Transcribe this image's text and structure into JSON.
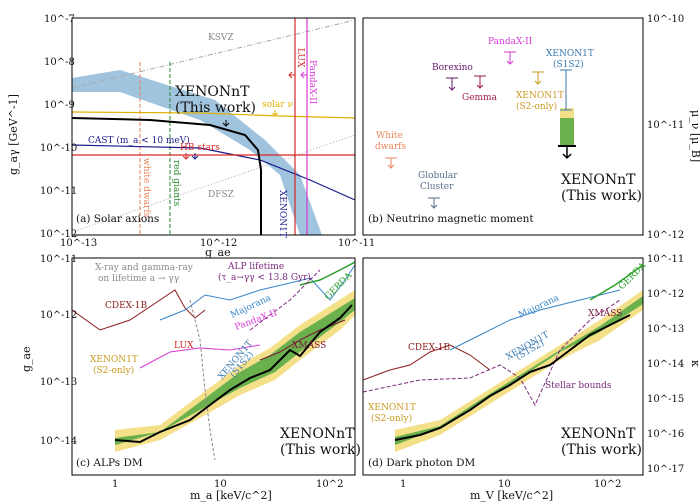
{
  "colors": {
    "xenon_black": "#000000",
    "band_green": "#6ab04c",
    "band_yellow": "#f5e08a",
    "xenon1t_blue": "#8fb8d8",
    "lux_red": "#d62728",
    "pandax_magenta": "#d63ad6",
    "solar_nu_gold": "#e0b000",
    "cast_navy": "#1b1b8a",
    "hb_red": "#d62728",
    "wd_orange": "#e8845a",
    "rg_green": "#2a8a2a",
    "borexino_purple": "#6a1b6a",
    "gemma_crimson": "#a01a4a",
    "xenon1t_s1s2": "#3a7ab0",
    "s2only_gold": "#c99a20",
    "gc_slate": "#5a6e8a",
    "cdex_darkred": "#8b1a1a",
    "majorana_blue": "#3a86c8",
    "gerda_green": "#2aa02a",
    "xmass_maroon": "#7a1a3a",
    "alp_purple": "#7a2a7a",
    "xray_gray": "#888888"
  },
  "chart_data": [
    {
      "panel": "a",
      "type": "line",
      "caption": "(a) Solar axions",
      "xlabel": "g_ae",
      "ylabel": "g_aγ [GeV^-1]",
      "xscale": "log",
      "yscale": "log",
      "xlim": [
        1e-13,
        1e-11
      ],
      "ylim": [
        1e-12,
        1e-07
      ],
      "x_ticks": [
        "10^-13",
        "10^-12",
        "10^-11"
      ],
      "y_ticks": [
        "10^-12",
        "10^-11",
        "10^-10",
        "10^-9",
        "10^-8",
        "10^-7"
      ],
      "annotations": [
        "KSVZ",
        "DFSZ",
        "PandaX-II",
        "LUX",
        "solar ν",
        "CAST (m_a < 10 meV)",
        "HB stars",
        "white dwarfs",
        "red giants",
        "XENON1T"
      ],
      "headline": [
        "XENONnT",
        "(This work)"
      ],
      "series": [
        {
          "name": "XENONnT",
          "x": [
            1e-13,
            2e-13,
            5e-13,
            1e-12,
            1.5e-12,
            1.9e-12,
            2e-12,
            2e-12
          ],
          "y": [
            6e-10,
            5e-10,
            4e-10,
            2.5e-10,
            1.5e-10,
            8e-11,
            2e-11,
            1e-12
          ]
        },
        {
          "name": "CAST (m_a < 10 meV)",
          "x": [
            1e-13,
            1e-12,
            3e-12,
            1e-11
          ],
          "y": [
            1.1e-10,
            1e-10,
            5e-11,
            1.2e-11
          ]
        },
        {
          "name": "solar ν",
          "x": [
            1e-13,
            1e-12,
            4e-12,
            1e-11
          ],
          "y": [
            5e-10,
            4.5e-10,
            4.2e-10,
            3.5e-10
          ]
        },
        {
          "name": "HB stars",
          "x": [
            1e-13,
            1e-11
          ],
          "y": [
            6.6e-11,
            6.6e-11
          ]
        },
        {
          "name": "LUX",
          "x": [
            3.5e-12,
            3.5e-12
          ],
          "y": [
            1e-12,
            1e-07
          ]
        },
        {
          "name": "PandaX-II",
          "x": [
            4.4e-12,
            4.4e-12
          ],
          "y": [
            1e-12,
            1e-07
          ]
        },
        {
          "name": "white dwarfs",
          "x": [
            2.8e-13,
            2.8e-13
          ],
          "y": [
            1e-12,
            1e-08
          ]
        },
        {
          "name": "red giants",
          "x": [
            4.3e-13,
            4.3e-13
          ],
          "y": [
            1e-12,
            1e-08
          ]
        },
        {
          "name": "KSVZ",
          "x": [
            1e-13,
            1e-11
          ],
          "y": [
            2e-09,
            1e-07
          ]
        },
        {
          "name": "DFSZ",
          "x": [
            1e-13,
            1e-11
          ],
          "y": [
            2e-12,
            1.5e-10
          ]
        }
      ],
      "xenon1t_band": {
        "x": [
          1e-13,
          1e-12,
          2.5e-12,
          3.3e-12
        ],
        "y_low": [
          3e-09,
          6e-10,
          1.5e-10,
          1e-12
        ],
        "y_high": [
          6e-09,
          1.5e-09,
          5e-10,
          1e-12
        ]
      }
    },
    {
      "panel": "b",
      "type": "scatter",
      "caption": "(b) Neutrino magnetic moment",
      "ylabel": "μ_ν [μ_B]",
      "yscale": "log",
      "ylim": [
        1e-12,
        1e-10
      ],
      "y_ticks": [
        "10^-12",
        "10^-11",
        "10^-10"
      ],
      "headline": [
        "XENONnT",
        "(This work)"
      ],
      "limits": [
        {
          "name": "White dwarfs",
          "value": 2.8e-12
        },
        {
          "name": "Globular Cluster",
          "value": 1.3e-12
        },
        {
          "name": "Borexino",
          "value": 2.8e-11
        },
        {
          "name": "Gemma",
          "value": 2.9e-11
        },
        {
          "name": "PandaX-II",
          "value": 4.9e-11
        },
        {
          "name": "XENON1T (S2-only)",
          "value": 3.2e-11
        },
        {
          "name": "XENON1T (S1S2)",
          "value_range": [
            1.4e-11,
            3.4e-11
          ]
        },
        {
          "name": "XENONnT",
          "value": 6.4e-12,
          "band_range": [
            6.4e-12,
            1.6e-11
          ]
        }
      ]
    },
    {
      "panel": "c",
      "type": "line",
      "caption": "(c) ALPs DM",
      "xlabel": "m_a [keV/c^2]",
      "ylabel": "g_ae",
      "xscale": "log",
      "yscale": "log",
      "xlim": [
        0.6,
        200
      ],
      "ylim": [
        5e-15,
        1e-11
      ],
      "x_ticks": [
        "1",
        "10",
        "10^2"
      ],
      "y_ticks": [
        "10^-14",
        "10^-13",
        "10^-12",
        "10^-11"
      ],
      "annotations": [
        "X-ray and gamma-ray",
        "on lifetime a → γγ",
        "ALP lifetime",
        "(τ_a→γγ < 13.8 Gyr)",
        "CDEX-1B",
        "Majorana",
        "GERDA",
        "PandaX-II",
        "LUX",
        "XMASS",
        "XENON1T",
        "(S1S2)",
        "XENON1T",
        "(S2-only)"
      ],
      "headline": [
        "XENONnT",
        "(This work)"
      ],
      "series": [
        {
          "name": "XENONnT",
          "x": [
            1,
            2,
            3,
            5,
            8,
            10,
            15,
            20,
            30,
            40,
            60,
            80,
            100,
            140
          ],
          "y": [
            1.2e-14,
            1.1e-14,
            1.5e-14,
            1.8e-14,
            2.3e-14,
            3e-14,
            4e-14,
            5e-14,
            6e-14,
            8e-14,
            1.2e-13,
            1.5e-13,
            1.4e-13,
            2.5e-13
          ]
        },
        {
          "name": "CDEX-1B",
          "x": [
            1,
            2,
            3,
            5,
            8,
            10
          ],
          "y": [
            5e-13,
            6e-13,
            8e-13,
            1e-12,
            2e-12,
            1.5e-12
          ]
        },
        {
          "name": "Majorana",
          "x": [
            6,
            10,
            20,
            40,
            60,
            100
          ],
          "y": [
            4e-13,
            8e-13,
            1.2e-12,
            2e-12,
            2.5e-12,
            3e-12
          ]
        },
        {
          "name": "GERDA",
          "x": [
            60,
            100,
            150,
            200
          ],
          "y": [
            2e-12,
            4e-12,
            6e-12,
            9e-12
          ]
        },
        {
          "name": "LUX",
          "x": [
            1.5,
            3,
            5,
            10,
            20
          ],
          "y": [
            2e-13,
            1.8e-13,
            1.5e-13,
            1.7e-13,
            2e-13
          ]
        },
        {
          "name": "XMASS",
          "x": [
            40,
            60,
            100,
            150
          ],
          "y": [
            1e-13,
            1.2e-13,
            1.5e-13,
            2e-13
          ]
        }
      ]
    },
    {
      "panel": "d",
      "type": "line",
      "caption": "(d) Dark photon DM",
      "xlabel": "m_V [keV/c^2]",
      "ylabel": "κ",
      "xscale": "log",
      "yscale": "log",
      "xlim": [
        0.6,
        200
      ],
      "ylim": [
        1e-17,
        1e-11
      ],
      "x_ticks": [
        "1",
        "10",
        "10^2"
      ],
      "y_ticks": [
        "10^-17",
        "10^-16",
        "10^-15",
        "10^-14",
        "10^-13",
        "10^-12",
        "10^-11"
      ],
      "annotations": [
        "CDEX-1B",
        "Majorana",
        "GERDA",
        "XMASS",
        "Stellar bounds",
        "XENON1T",
        "(S1S2)",
        "XENON1T",
        "(S2-only)"
      ],
      "headline": [
        "XENONnT",
        "(This work)"
      ],
      "series": [
        {
          "name": "XENONnT",
          "x": [
            1,
            2,
            3,
            5,
            8,
            10,
            15,
            20,
            30,
            40,
            60,
            80,
            100,
            140
          ],
          "y": [
            1.5e-16,
            2e-16,
            3e-16,
            5e-16,
            8e-16,
            1.2e-15,
            2e-15,
            3e-15,
            5e-15,
            8e-15,
            2e-14,
            3e-14,
            4e-14,
            8e-14
          ]
        },
        {
          "name": "Stellar bounds",
          "x": [
            0.6,
            3,
            10,
            20,
            30,
            60,
            100
          ],
          "y": [
            1e-14,
            3e-14,
            3e-14,
            1e-14,
            2e-15,
            1e-13,
            5e-15
          ]
        }
      ]
    }
  ]
}
